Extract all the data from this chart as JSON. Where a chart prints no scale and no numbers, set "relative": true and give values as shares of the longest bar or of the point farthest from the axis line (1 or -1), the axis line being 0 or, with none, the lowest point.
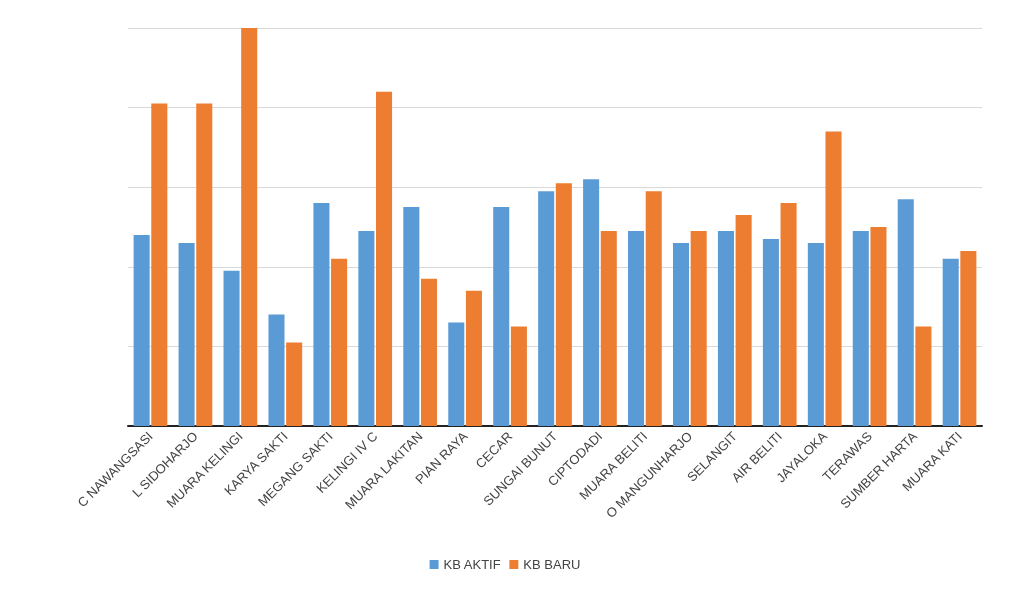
{
  "chart_data": {
    "type": "bar",
    "relative": true,
    "grid": "y",
    "legend": "bottom",
    "categories": [
      "C NAWANGSASI",
      "L SIDOHARJO",
      "MUARA KELINGI",
      "KARYA SAKTI",
      "MEGANG SAKTI",
      "KELINGI IV C",
      "MUARA LAKITAN",
      "PIAN RAYA",
      "CECAR",
      "SUNGAI BUNUT",
      "CIPTODADI",
      "MUARA BELITI",
      "O MANGUNHARJO",
      "SELANGIT",
      "AIR BELITI",
      "JAYALOKA",
      "TERAWAS",
      "SUMBER HARTA",
      "MUARA KATI"
    ],
    "series": [
      {
        "name": "KB AKTIF",
        "color": "#5b9bd5",
        "values": [
          0.48,
          0.46,
          0.39,
          0.28,
          0.56,
          0.49,
          0.55,
          0.26,
          0.55,
          0.59,
          0.62,
          0.49,
          0.46,
          0.49,
          0.47,
          0.46,
          0.49,
          0.57,
          0.42
        ]
      },
      {
        "name": "KB BARU",
        "color": "#ed7d31",
        "values": [
          0.81,
          0.81,
          1,
          0.21,
          0.42,
          0.84,
          0.37,
          0.34,
          0.25,
          0.61,
          0.49,
          0.59,
          0.49,
          0.53,
          0.56,
          0.74,
          0.5,
          0.25,
          0.44
        ]
      }
    ]
  }
}
